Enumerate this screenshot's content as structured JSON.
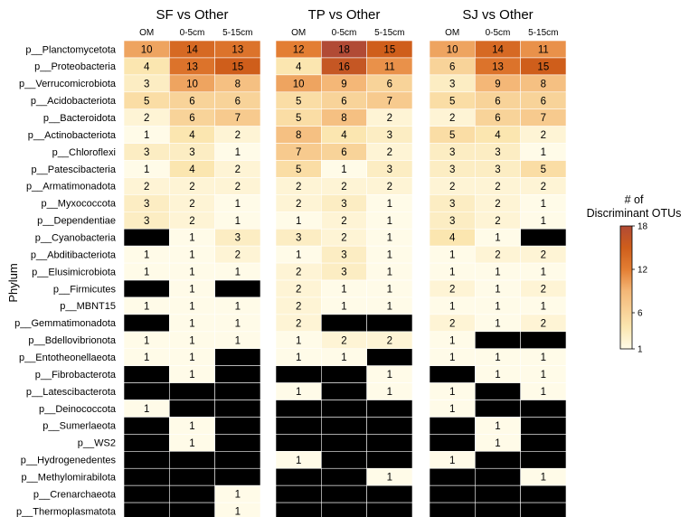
{
  "chart_data": {
    "type": "heatmap",
    "ylabel": "Phylum",
    "legend": {
      "title_line1": "# of",
      "title_line2": "Discriminant OTUs",
      "min": 1,
      "max": 18,
      "ticks": [
        1,
        6,
        12,
        18
      ],
      "placement": "right"
    },
    "colors": {
      "low": "#fffbe8",
      "c2": "#fbe6b0",
      "c3": "#f4b777",
      "c4": "#e37e33",
      "c5": "#cf5e1b",
      "high": "#b14a35",
      "missing": "#000000"
    },
    "rows": [
      "p__Planctomycetota",
      "p__Proteobacteria",
      "p__Verrucomicrobiota",
      "p__Acidobacteriota",
      "p__Bacteroidota",
      "p__Actinobacteriota",
      "p__Chloroflexi",
      "p__Patescibacteria",
      "p__Armatimonadota",
      "p__Myxococcota",
      "p__Dependentiae",
      "p__Cyanobacteria",
      "p__Abditibacteriota",
      "p__Elusimicrobiota",
      "p__Firmicutes",
      "p__MBNT15",
      "p__Gemmatimonadota",
      "p__Bdellovibrionota",
      "p__Entotheonellaeota",
      "p__Fibrobacterota",
      "p__Latescibacterota",
      "p__Deinococcota",
      "p__Sumerlaeota",
      "p__WS2",
      "p__Hydrogenedentes",
      "p__Methylomirabilota",
      "p__Crenarchaeota",
      "p__Thermoplasmatota"
    ],
    "columns": [
      "OM",
      "0-5cm",
      "5-15cm"
    ],
    "panels": [
      {
        "title": "SF vs Other",
        "values": [
          [
            10,
            14,
            13
          ],
          [
            4,
            13,
            15
          ],
          [
            3,
            10,
            8
          ],
          [
            5,
            6,
            6
          ],
          [
            2,
            6,
            7
          ],
          [
            1,
            4,
            2
          ],
          [
            3,
            3,
            1
          ],
          [
            1,
            4,
            2
          ],
          [
            2,
            2,
            2
          ],
          [
            3,
            2,
            1
          ],
          [
            3,
            2,
            1
          ],
          [
            null,
            1,
            3
          ],
          [
            1,
            1,
            2
          ],
          [
            1,
            1,
            1
          ],
          [
            null,
            1,
            null
          ],
          [
            1,
            1,
            1
          ],
          [
            null,
            1,
            1
          ],
          [
            1,
            1,
            1
          ],
          [
            1,
            1,
            null
          ],
          [
            null,
            1,
            null
          ],
          [
            null,
            null,
            null
          ],
          [
            1,
            null,
            null
          ],
          [
            null,
            1,
            null
          ],
          [
            null,
            1,
            null
          ],
          [
            null,
            null,
            null
          ],
          [
            null,
            null,
            null
          ],
          [
            null,
            null,
            1
          ],
          [
            null,
            null,
            1
          ]
        ]
      },
      {
        "title": "TP vs Other",
        "values": [
          [
            12,
            18,
            15
          ],
          [
            4,
            16,
            11
          ],
          [
            10,
            9,
            6
          ],
          [
            5,
            6,
            7
          ],
          [
            5,
            8,
            2
          ],
          [
            8,
            4,
            3
          ],
          [
            7,
            6,
            2
          ],
          [
            5,
            1,
            3
          ],
          [
            2,
            2,
            2
          ],
          [
            2,
            3,
            1
          ],
          [
            1,
            2,
            1
          ],
          [
            3,
            2,
            1
          ],
          [
            1,
            3,
            1
          ],
          [
            2,
            3,
            1
          ],
          [
            2,
            1,
            1
          ],
          [
            2,
            1,
            1
          ],
          [
            2,
            null,
            null
          ],
          [
            1,
            2,
            2
          ],
          [
            1,
            1,
            null
          ],
          [
            null,
            null,
            1
          ],
          [
            1,
            null,
            1
          ],
          [
            null,
            null,
            null
          ],
          [
            null,
            null,
            null
          ],
          [
            null,
            null,
            null
          ],
          [
            1,
            null,
            null
          ],
          [
            null,
            null,
            1
          ],
          [
            null,
            null,
            null
          ],
          [
            null,
            null,
            null
          ]
        ]
      },
      {
        "title": "SJ vs Other",
        "values": [
          [
            10,
            14,
            11
          ],
          [
            6,
            13,
            15
          ],
          [
            3,
            9,
            8
          ],
          [
            5,
            6,
            6
          ],
          [
            2,
            6,
            7
          ],
          [
            5,
            4,
            2
          ],
          [
            3,
            3,
            1
          ],
          [
            3,
            3,
            5
          ],
          [
            2,
            2,
            2
          ],
          [
            3,
            2,
            1
          ],
          [
            3,
            2,
            1
          ],
          [
            4,
            1,
            null
          ],
          [
            1,
            2,
            2
          ],
          [
            1,
            1,
            1
          ],
          [
            2,
            1,
            2
          ],
          [
            1,
            1,
            1
          ],
          [
            2,
            1,
            2
          ],
          [
            1,
            null,
            null
          ],
          [
            1,
            1,
            1
          ],
          [
            null,
            1,
            1
          ],
          [
            1,
            null,
            1
          ],
          [
            1,
            null,
            null
          ],
          [
            null,
            1,
            null
          ],
          [
            null,
            1,
            null
          ],
          [
            1,
            null,
            null
          ],
          [
            null,
            null,
            1
          ],
          [
            null,
            null,
            null
          ],
          [
            null,
            null,
            null
          ]
        ]
      }
    ]
  }
}
